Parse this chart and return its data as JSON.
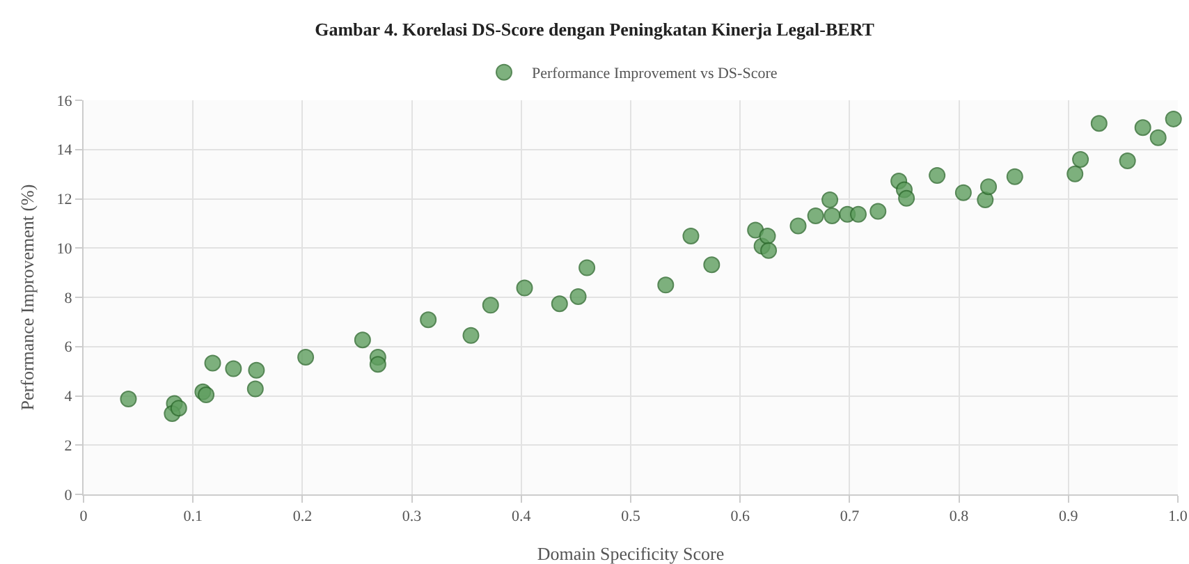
{
  "chart_data": {
    "type": "scatter",
    "title": "Gambar 4. Korelasi DS-Score dengan Peningkatan Kinerja Legal-BERT",
    "xlabel": "Domain Specificity Score",
    "ylabel": "Performance Improvement (%)",
    "xlim": [
      0,
      1
    ],
    "xticks": [
      0,
      0.1,
      0.2,
      0.3,
      0.4,
      0.5,
      0.6,
      0.7,
      0.8,
      0.9,
      {
        "value": 1,
        "label": "1.0"
      }
    ],
    "ylim": [
      0,
      16
    ],
    "yticks": [
      0,
      2,
      4,
      6,
      8,
      10,
      12,
      14,
      16
    ],
    "grid": true,
    "legend": "top",
    "marker": "circle",
    "series": [
      {
        "name": "Performance Improvement vs DS-Score",
        "color": "#5e9e5e",
        "x": [
          0.041,
          0.083,
          0.081,
          0.087,
          0.109,
          0.112,
          0.118,
          0.137,
          0.158,
          0.157,
          0.203,
          0.255,
          0.269,
          0.269,
          0.315,
          0.354,
          0.372,
          0.403,
          0.435,
          0.452,
          0.46,
          0.532,
          0.555,
          0.574,
          0.614,
          0.62,
          0.625,
          0.626,
          0.653,
          0.669,
          0.682,
          0.684,
          0.698,
          0.708,
          0.726,
          0.745,
          0.75,
          0.752,
          0.78,
          0.804,
          0.824,
          0.827,
          0.851,
          0.906,
          0.911,
          0.928,
          0.954,
          0.968,
          0.982,
          0.996
        ],
        "values": [
          3.87,
          3.69,
          3.28,
          3.5,
          4.16,
          4.04,
          5.33,
          5.1,
          5.04,
          4.28,
          5.57,
          6.27,
          5.57,
          5.28,
          7.09,
          6.45,
          7.68,
          8.38,
          7.74,
          8.03,
          9.2,
          8.5,
          10.49,
          9.32,
          10.73,
          10.08,
          10.49,
          9.9,
          10.9,
          11.31,
          11.96,
          11.31,
          11.37,
          11.37,
          11.49,
          12.72,
          12.37,
          12.02,
          12.95,
          12.25,
          11.96,
          12.49,
          12.9,
          13.01,
          13.6,
          15.06,
          13.54,
          14.89,
          14.48,
          15.24
        ]
      }
    ]
  }
}
